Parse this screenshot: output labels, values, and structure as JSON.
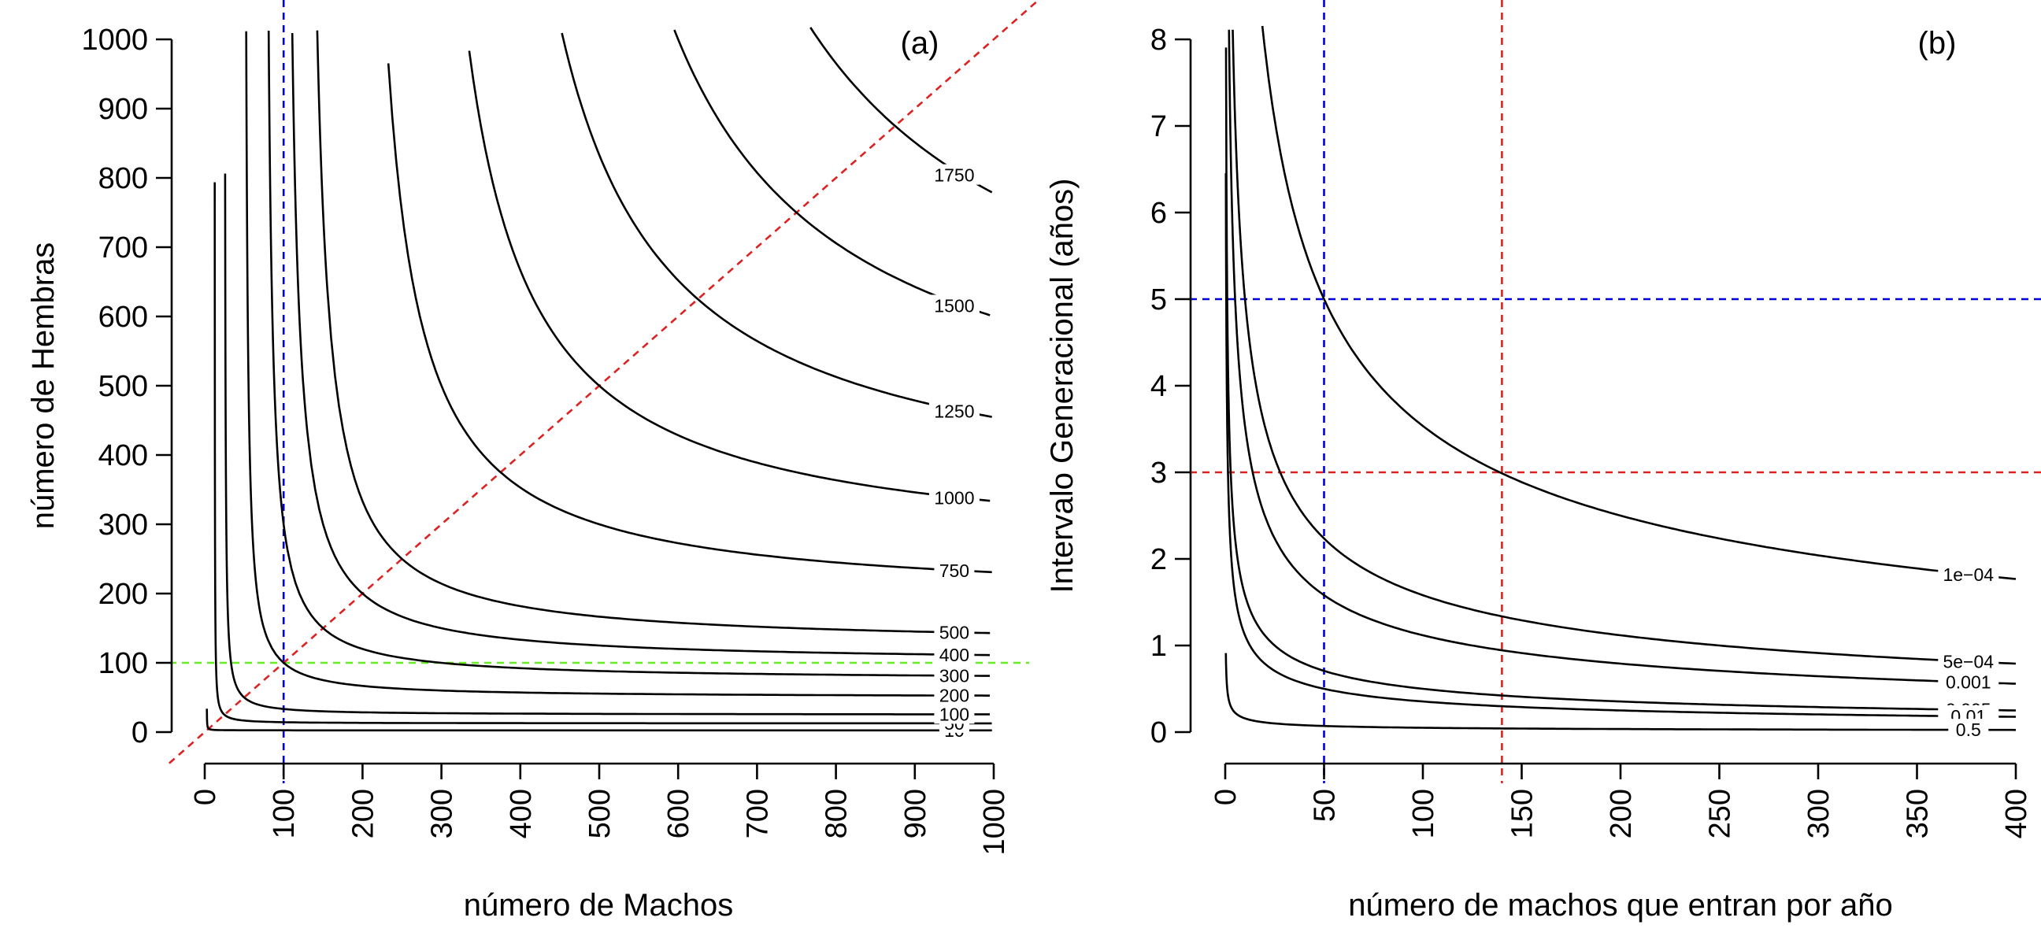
{
  "chart_data": [
    {
      "type": "line",
      "subtype": "contour",
      "panel_label": "(a)",
      "xlabel": "número de Machos",
      "ylabel": "número de Hembras",
      "xlim": [
        0,
        1000
      ],
      "ylim": [
        0,
        1000
      ],
      "x_ticks": [
        "0",
        "100",
        "200",
        "300",
        "400",
        "500",
        "600",
        "700",
        "800",
        "900",
        "1000"
      ],
      "y_ticks": [
        "0",
        "100",
        "200",
        "300",
        "400",
        "500",
        "600",
        "700",
        "800",
        "900",
        "1000"
      ],
      "grid": false,
      "legend": "none",
      "contour_function": "Ne = 4*M*F/(M+F)",
      "contour_levels": [
        10,
        50,
        100,
        200,
        300,
        400,
        500,
        750,
        1000,
        1250,
        1500,
        1750
      ],
      "contour_labels": [
        "10",
        "50",
        "100",
        "200",
        "300",
        "400",
        "500",
        "750",
        "1000",
        "1250",
        "1500",
        "1750"
      ],
      "reference_lines": [
        {
          "kind": "vertical",
          "x": 100,
          "color": "#0000dd",
          "style": "dashed"
        },
        {
          "kind": "horizontal",
          "y": 100,
          "color": "#66ee22",
          "style": "dashed"
        },
        {
          "kind": "diagonal",
          "slope": 1,
          "intercept": 0,
          "color": "#dd2222",
          "style": "dashed"
        }
      ]
    },
    {
      "type": "line",
      "subtype": "contour",
      "panel_label": "(b)",
      "xlabel": "número de machos que entran por año",
      "ylabel": "Intervalo Generacional (años)",
      "xlim": [
        0,
        400
      ],
      "ylim": [
        0,
        8
      ],
      "x_ticks": [
        "0",
        "50",
        "100",
        "150",
        "200",
        "250",
        "300",
        "350",
        "400"
      ],
      "y_ticks": [
        "0",
        "1",
        "2",
        "3",
        "4",
        "5",
        "6",
        "7",
        "8"
      ],
      "grid": false,
      "legend": "none",
      "contour_function": "rate = 1/(8*n*L^2)",
      "contour_levels": [
        0.0001,
        0.0005,
        0.001,
        0.005,
        0.01,
        0.5
      ],
      "contour_labels": [
        "1e−04",
        "5e−04",
        "0.001",
        "0.005",
        "0.01",
        "0.5"
      ],
      "reference_lines": [
        {
          "kind": "vertical",
          "x": 50,
          "color": "#0000dd",
          "style": "dashed"
        },
        {
          "kind": "horizontal",
          "y": 5,
          "color": "#0000dd",
          "style": "dashed"
        },
        {
          "kind": "vertical",
          "x": 140,
          "color": "#dd2222",
          "style": "dashed"
        },
        {
          "kind": "horizontal",
          "y": 3,
          "color": "#dd2222",
          "style": "dashed"
        }
      ]
    }
  ]
}
